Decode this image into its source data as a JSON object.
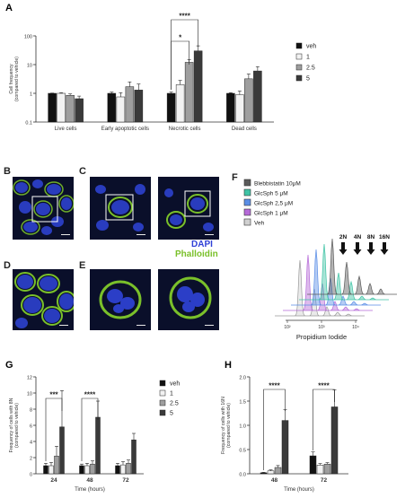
{
  "panels": {
    "A": "A",
    "B": "B",
    "C": "C",
    "D": "D",
    "E": "E",
    "F": "F",
    "G": "G",
    "H": "H"
  },
  "legend_veh": {
    "labels": [
      "veh",
      "1",
      "2.5",
      "5"
    ],
    "fills": [
      "#111111",
      "#f2f2f2",
      "#9e9e9e",
      "#3a3a3a"
    ]
  },
  "stains": {
    "dapi": "DAPI",
    "phalloidin": "Phalloidin",
    "dapi_color": "#2e3fd6",
    "phalloidin_color": "#7ac02a"
  },
  "flow": {
    "legend": [
      "Blebbistatin 10μM",
      "GlcSph 5 μM",
      "GlcSph 2,5 μM",
      "GlcSph 1 μM",
      "Veh"
    ],
    "legend_colors": [
      "#5a5a5a",
      "#3fc3a5",
      "#5a8ee6",
      "#b56ad8",
      "#d0d0d0"
    ],
    "ploidy": [
      "2N",
      "4N",
      "8N",
      "16N"
    ],
    "xlabel": "Propidium Iodide",
    "xticks": [
      "10²",
      "10³",
      "10⁴"
    ]
  },
  "chart_data": [
    {
      "id": "A",
      "type": "bar",
      "ylabel": "Cell frequency (compared to vehicle)",
      "yscale": "log",
      "ylim": [
        0.1,
        100
      ],
      "yticks": [
        "0.1",
        "1",
        "10",
        "100"
      ],
      "categories": [
        "Live cells",
        "Early apoptotic cells",
        "Necrotic cells",
        "Dead cells"
      ],
      "series": [
        {
          "name": "veh",
          "values": [
            1.0,
            1.0,
            1.0,
            1.0
          ],
          "errors": [
            0.02,
            0.1,
            0.1,
            0.05
          ]
        },
        {
          "name": "1",
          "values": [
            1.0,
            0.75,
            2.0,
            0.9
          ],
          "errors": [
            0.05,
            0.3,
            0.8,
            0.3
          ]
        },
        {
          "name": "2.5",
          "values": [
            0.85,
            1.7,
            12.0,
            3.2
          ],
          "errors": [
            0.1,
            0.8,
            3.0,
            1.5
          ]
        },
        {
          "name": "5",
          "values": [
            0.65,
            1.3,
            30.0,
            6.0
          ],
          "errors": [
            0.15,
            0.8,
            15.0,
            2.5
          ]
        }
      ],
      "significance": [
        {
          "label": "****"
        },
        {
          "label": "*"
        }
      ]
    },
    {
      "id": "G",
      "type": "bar",
      "ylabel": "Frequency of cells with 8N (compared to vehicle)",
      "xlabel": "Time (hours)",
      "ylim": [
        0,
        12
      ],
      "yticks": [
        "0",
        "2",
        "4",
        "6",
        "8",
        "10",
        "12"
      ],
      "categories": [
        "24",
        "48",
        "72"
      ],
      "series": [
        {
          "name": "veh",
          "values": [
            1.0,
            1.0,
            1.0
          ],
          "errors": [
            0.3,
            0.2,
            0.3
          ]
        },
        {
          "name": "1",
          "values": [
            1.0,
            1.0,
            1.1
          ],
          "errors": [
            0.4,
            0.3,
            0.4
          ]
        },
        {
          "name": "2.5",
          "values": [
            2.2,
            1.2,
            1.3
          ],
          "errors": [
            1.2,
            0.4,
            0.4
          ]
        },
        {
          "name": "5",
          "values": [
            5.8,
            7.0,
            4.2
          ],
          "errors": [
            4.5,
            2.0,
            0.8
          ]
        }
      ],
      "significance": [
        {
          "label": "***"
        },
        {
          "label": "****"
        }
      ]
    },
    {
      "id": "H",
      "type": "bar",
      "ylabel": "Frequency of cells with 16N (compared to vehicle)",
      "xlabel": "Time (hours)",
      "ylim": [
        0,
        2
      ],
      "yticks": [
        "0.0",
        "0.5",
        "1.0",
        "1.5",
        "2.0"
      ],
      "categories": [
        "48",
        "72"
      ],
      "series": [
        {
          "name": "veh",
          "values": [
            0.02,
            0.37
          ],
          "errors": [
            0.01,
            0.08
          ]
        },
        {
          "name": "1",
          "values": [
            0.06,
            0.18
          ],
          "errors": [
            0.02,
            0.03
          ]
        },
        {
          "name": "2.5",
          "values": [
            0.13,
            0.2
          ],
          "errors": [
            0.04,
            0.03
          ]
        },
        {
          "name": "5",
          "values": [
            1.1,
            1.38
          ],
          "errors": [
            0.22,
            0.35
          ]
        }
      ],
      "significance": [
        {
          "label": "****"
        },
        {
          "label": "****"
        }
      ]
    }
  ]
}
